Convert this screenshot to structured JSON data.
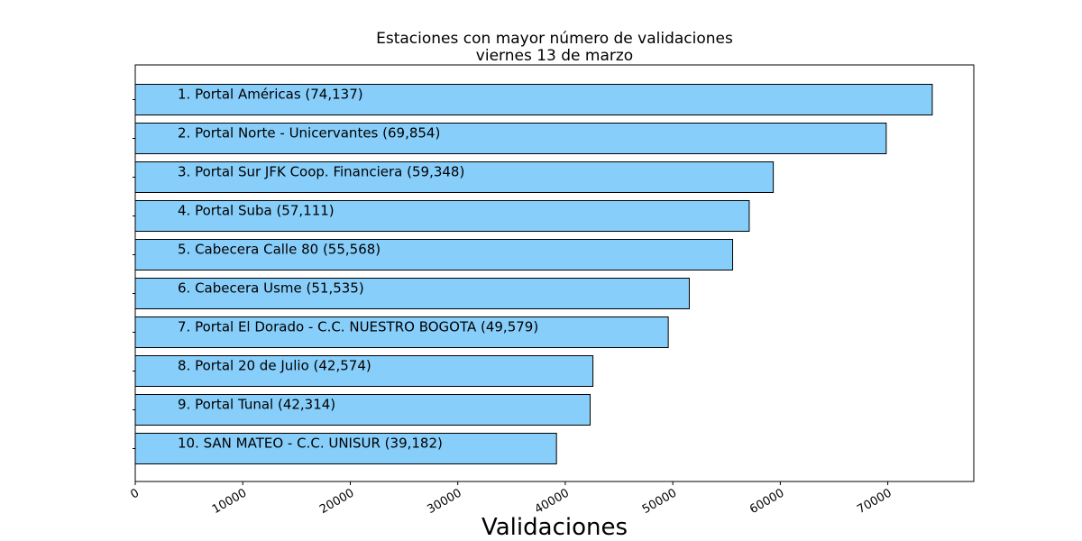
{
  "chart_data": {
    "type": "bar",
    "orientation": "horizontal",
    "title": "Estaciones con mayor número de validaciones",
    "subtitle": "viernes 13 de marzo",
    "xlabel": "Validaciones",
    "ylabel": "",
    "xlim": [
      0,
      78000
    ],
    "xticks": [
      0,
      10000,
      20000,
      30000,
      40000,
      50000,
      60000,
      70000
    ],
    "grid": false,
    "bar_color": "#87CEFA",
    "edge_color": "#000000",
    "categories": [
      "1. Portal Américas (74,137)",
      "2. Portal Norte - Unicervantes (69,854)",
      "3. Portal Sur JFK Coop. Financiera (59,348)",
      "4. Portal Suba (57,111)",
      "5. Cabecera Calle 80 (55,568)",
      "6. Cabecera Usme (51,535)",
      "7. Portal El Dorado - C.C. NUESTRO BOGOTA (49,579)",
      "8. Portal 20 de Julio (42,574)",
      "9. Portal Tunal (42,314)",
      "10. SAN MATEO - C.C. UNISUR (39,182)"
    ],
    "values": [
      74137,
      69854,
      59348,
      57111,
      55568,
      51535,
      49579,
      42574,
      42314,
      39182
    ]
  }
}
